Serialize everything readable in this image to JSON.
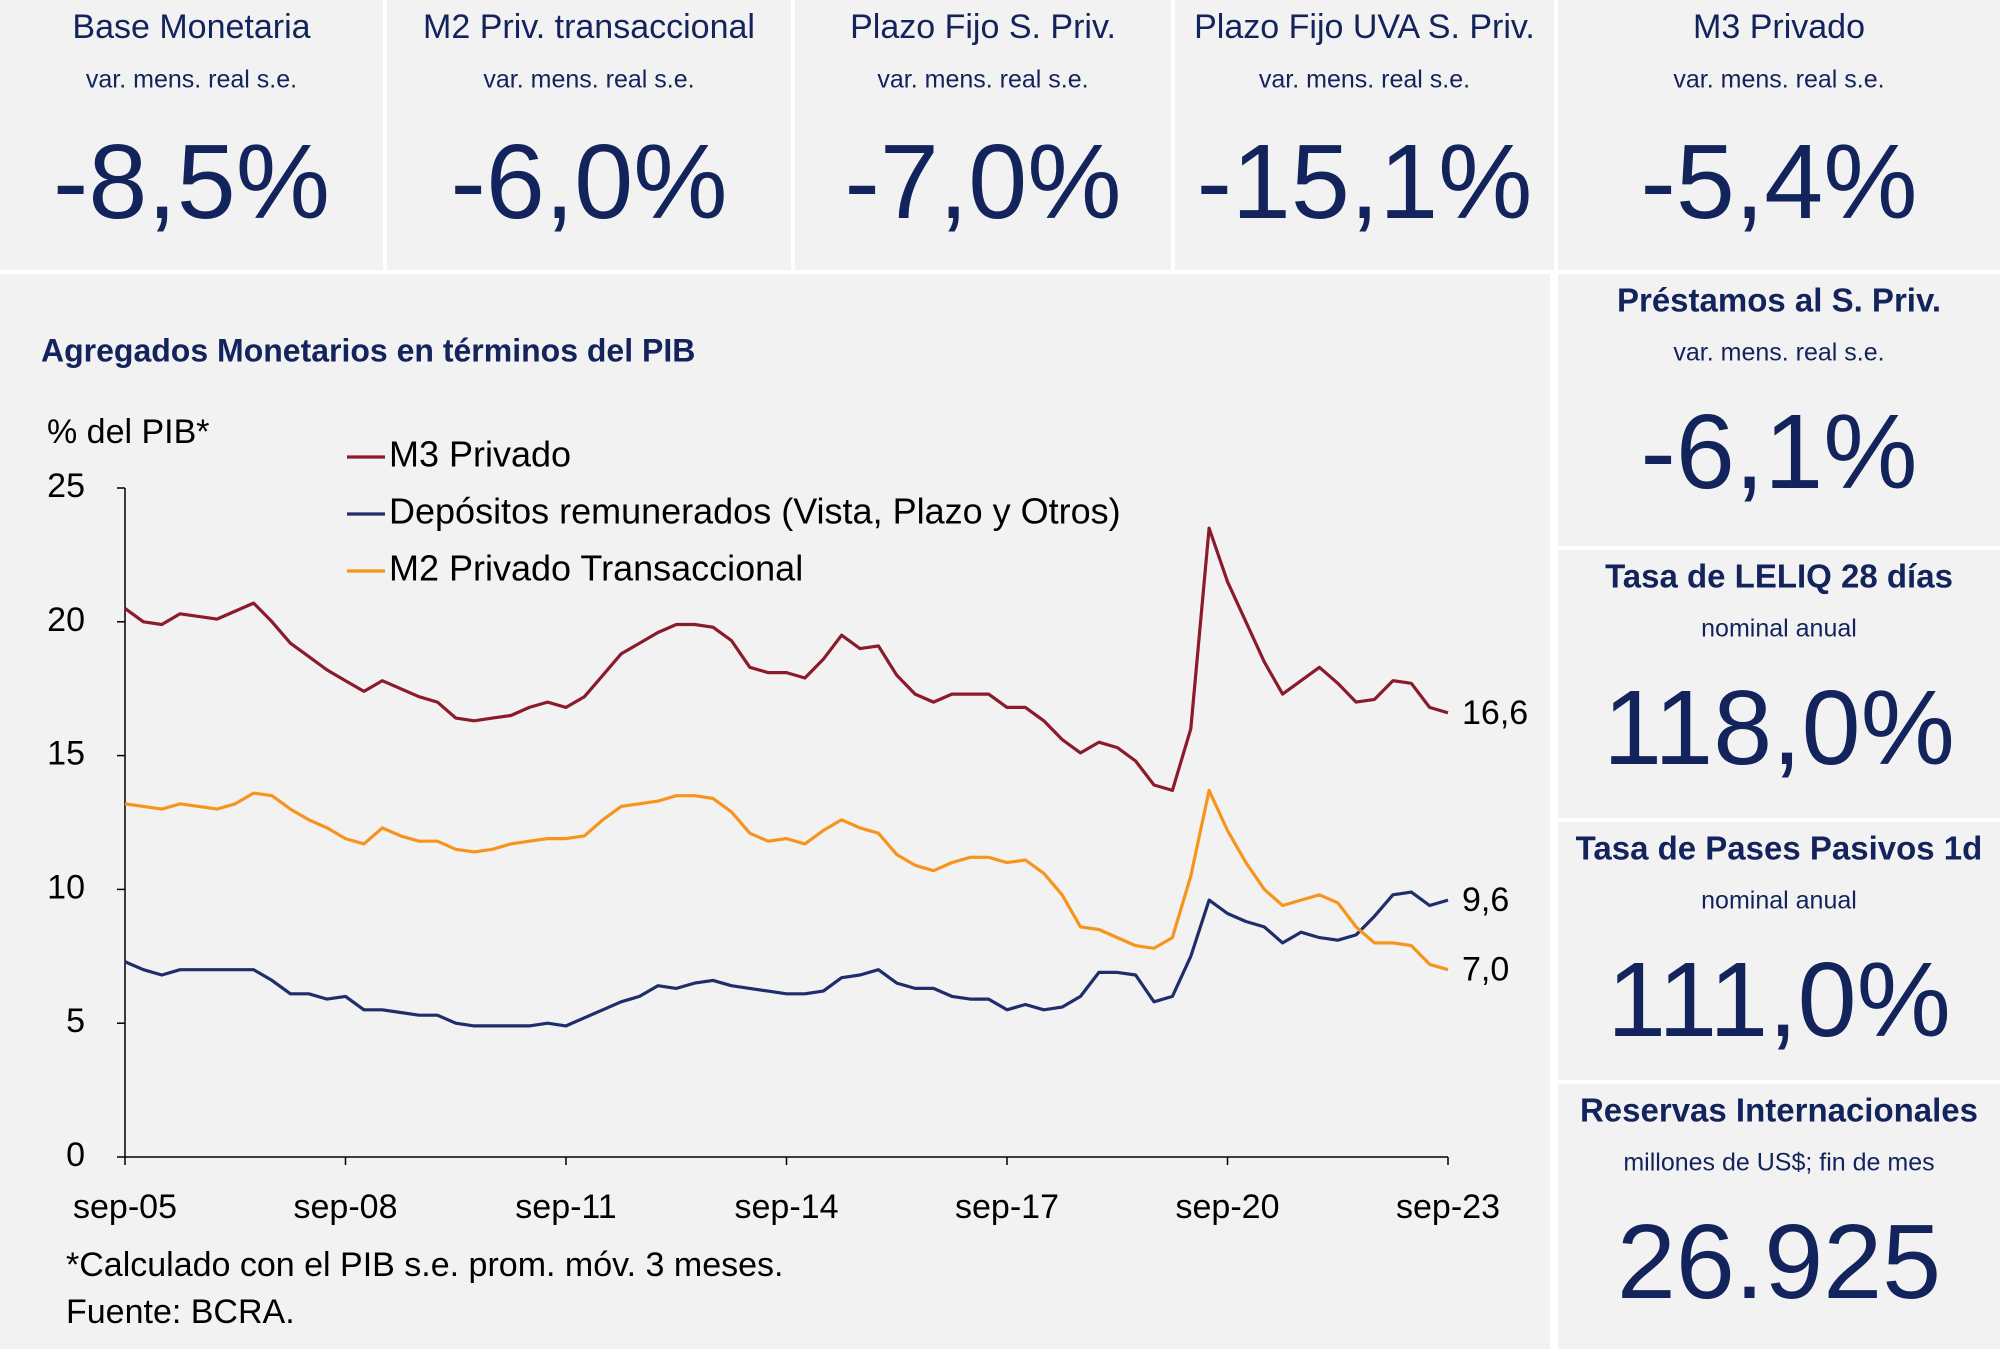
{
  "top_cards": [
    {
      "title": "Base Monetaria",
      "subtitle": "var. mens. real s.e.",
      "value": "-8,5%"
    },
    {
      "title": "M2 Priv. transaccional",
      "subtitle": "var. mens. real s.e.",
      "value": "-6,0%"
    },
    {
      "title": "Plazo Fijo S. Priv.",
      "subtitle": "var. mens. real s.e.",
      "value": "-7,0%"
    },
    {
      "title": "Plazo Fijo UVA S. Priv.",
      "subtitle": "var. mens. real s.e.",
      "value": "-15,1%"
    },
    {
      "title": "M3 Privado",
      "subtitle": "var. mens. real s.e.",
      "value": "-5,4%"
    }
  ],
  "side_cards": [
    {
      "title": "Préstamos al S. Priv.",
      "subtitle": "var. mens. real s.e.",
      "value": "-6,1%"
    },
    {
      "title": "Tasa de LELIQ 28 días",
      "subtitle": "nominal anual",
      "value": "118,0%"
    },
    {
      "title": "Tasa de Pases Pasivos 1d",
      "subtitle": "nominal anual",
      "value": "111,0%"
    },
    {
      "title": "Reservas Internacionales",
      "subtitle": "millones de US$; fin de mes",
      "value": "26.925"
    }
  ],
  "chart_data": {
    "type": "line",
    "title": "Agregados Monetarios en términos del PIB",
    "y_label": "% del PIB*",
    "notes": [
      "*Calculado con el PIB s.e. prom. móv. 3 meses.",
      "Fuente: BCRA."
    ],
    "x": [
      "sep-05",
      null,
      null,
      null,
      null,
      null,
      null,
      null,
      null,
      null,
      null,
      null,
      "sep-08",
      null,
      null,
      null,
      null,
      null,
      null,
      null,
      null,
      null,
      null,
      null,
      "sep-11",
      null,
      null,
      null,
      null,
      null,
      null,
      null,
      null,
      null,
      null,
      null,
      "sep-14",
      null,
      null,
      null,
      null,
      null,
      null,
      null,
      null,
      null,
      null,
      null,
      "sep-17",
      null,
      null,
      null,
      null,
      null,
      null,
      null,
      null,
      null,
      null,
      null,
      "sep-20",
      null,
      null,
      null,
      null,
      null,
      null,
      null,
      null,
      null,
      null,
      null,
      "sep-23"
    ],
    "ylim": [
      0,
      25
    ],
    "yticks": [
      0,
      5,
      10,
      15,
      20,
      25
    ],
    "series": [
      {
        "name": "M3 Privado",
        "color": "#8b1a2b",
        "value_label": "16,6",
        "values": [
          20.5,
          20.0,
          19.9,
          20.3,
          20.2,
          20.1,
          20.4,
          20.7,
          20.0,
          19.2,
          18.7,
          18.2,
          17.8,
          17.4,
          17.8,
          17.5,
          17.2,
          17.0,
          16.4,
          16.3,
          16.4,
          16.5,
          16.8,
          17.0,
          16.8,
          17.2,
          18.0,
          18.8,
          19.2,
          19.6,
          19.9,
          19.9,
          19.8,
          19.3,
          18.3,
          18.1,
          18.1,
          17.9,
          18.6,
          19.5,
          19.0,
          19.1,
          18.0,
          17.3,
          17.0,
          17.3,
          17.3,
          17.3,
          16.8,
          16.8,
          16.3,
          15.6,
          15.1,
          15.5,
          15.3,
          14.8,
          13.9,
          13.7,
          16.0,
          23.5,
          21.5,
          20.0,
          18.5,
          17.3,
          17.8,
          18.3,
          17.7,
          17.0,
          17.1,
          17.8,
          17.7,
          16.8,
          16.6
        ]
      },
      {
        "name": "Depósitos remunerados (Vista, Plazo y Otros)",
        "color": "#1f2d6b",
        "value_label": "9,6",
        "values": [
          7.3,
          7.0,
          6.8,
          7.0,
          7.0,
          7.0,
          7.0,
          7.0,
          6.6,
          6.1,
          6.1,
          5.9,
          6.0,
          5.5,
          5.5,
          5.4,
          5.3,
          5.3,
          5.0,
          4.9,
          4.9,
          4.9,
          4.9,
          5.0,
          4.9,
          5.2,
          5.5,
          5.8,
          6.0,
          6.4,
          6.3,
          6.5,
          6.6,
          6.4,
          6.3,
          6.2,
          6.1,
          6.1,
          6.2,
          6.7,
          6.8,
          7.0,
          6.5,
          6.3,
          6.3,
          6.0,
          5.9,
          5.9,
          5.5,
          5.7,
          5.5,
          5.6,
          6.0,
          6.9,
          6.9,
          6.8,
          5.8,
          6.0,
          7.5,
          9.6,
          9.1,
          8.8,
          8.6,
          8.0,
          8.4,
          8.2,
          8.1,
          8.3,
          9.0,
          9.8,
          9.9,
          9.4,
          9.6
        ]
      },
      {
        "name": "M2 Privado Transaccional",
        "color": "#f7941d",
        "value_label": "7,0",
        "values": [
          13.2,
          13.1,
          13.0,
          13.2,
          13.1,
          13.0,
          13.2,
          13.6,
          13.5,
          13.0,
          12.6,
          12.3,
          11.9,
          11.7,
          12.3,
          12.0,
          11.8,
          11.8,
          11.5,
          11.4,
          11.5,
          11.7,
          11.8,
          11.9,
          11.9,
          12.0,
          12.6,
          13.1,
          13.2,
          13.3,
          13.5,
          13.5,
          13.4,
          12.9,
          12.1,
          11.8,
          11.9,
          11.7,
          12.2,
          12.6,
          12.3,
          12.1,
          11.3,
          10.9,
          10.7,
          11.0,
          11.2,
          11.2,
          11.0,
          11.1,
          10.6,
          9.8,
          8.6,
          8.5,
          8.2,
          7.9,
          7.8,
          8.2,
          10.5,
          13.7,
          12.2,
          11.0,
          10.0,
          9.4,
          9.6,
          9.8,
          9.5,
          8.6,
          8.0,
          8.0,
          7.9,
          7.2,
          7.0
        ]
      }
    ]
  }
}
